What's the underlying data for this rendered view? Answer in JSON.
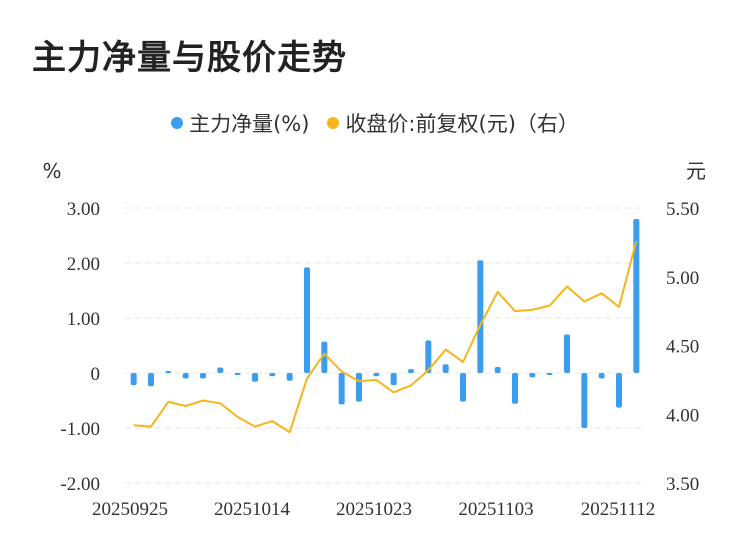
{
  "title": "主力净量与股价走势",
  "legend": {
    "net_label": "主力净量(%)",
    "price_label": "收盘价:前复权(元)（右）"
  },
  "colors": {
    "bar": "#3a9df0",
    "line": "#f5b51b",
    "grid": "#e6e6e6",
    "text": "#333333"
  },
  "chart_data": {
    "type": "bar",
    "x_tick_labels": [
      "20250925",
      "20251014",
      "20251023",
      "20251103",
      "20251112"
    ],
    "y_left": {
      "unit": "%",
      "min": -2,
      "max": 3,
      "ticks": [
        "-2.00",
        "-1.00",
        "0",
        "1.00",
        "2.00",
        "3.00"
      ]
    },
    "y_right": {
      "unit": "元",
      "min": 3.5,
      "max": 5.5,
      "ticks": [
        "3.50",
        "4.00",
        "4.50",
        "5.00",
        "5.50"
      ]
    },
    "grid": true,
    "legend_position": "top-center",
    "series": [
      {
        "name": "主力净量(%)",
        "type": "bar",
        "axis": "left",
        "values": [
          -0.22,
          -0.24,
          0.03,
          -0.1,
          -0.1,
          0.1,
          -0.01,
          -0.16,
          -0.06,
          -0.14,
          1.92,
          0.57,
          -0.57,
          -0.52,
          -0.06,
          -0.22,
          0.07,
          0.59,
          0.16,
          -0.52,
          2.05,
          0.11,
          -0.56,
          -0.08,
          -0.01,
          0.7,
          -1.0,
          -0.1,
          -0.63,
          2.8
        ]
      },
      {
        "name": "收盘价:前复权(元)（右）",
        "type": "line",
        "axis": "right",
        "values": [
          3.92,
          3.91,
          4.09,
          4.06,
          4.1,
          4.08,
          3.98,
          3.91,
          3.95,
          3.87,
          4.26,
          4.44,
          4.31,
          4.24,
          4.25,
          4.16,
          4.21,
          4.32,
          4.47,
          4.38,
          4.65,
          4.89,
          4.75,
          4.76,
          4.79,
          4.93,
          4.82,
          4.88,
          4.78,
          5.26
        ]
      }
    ]
  }
}
